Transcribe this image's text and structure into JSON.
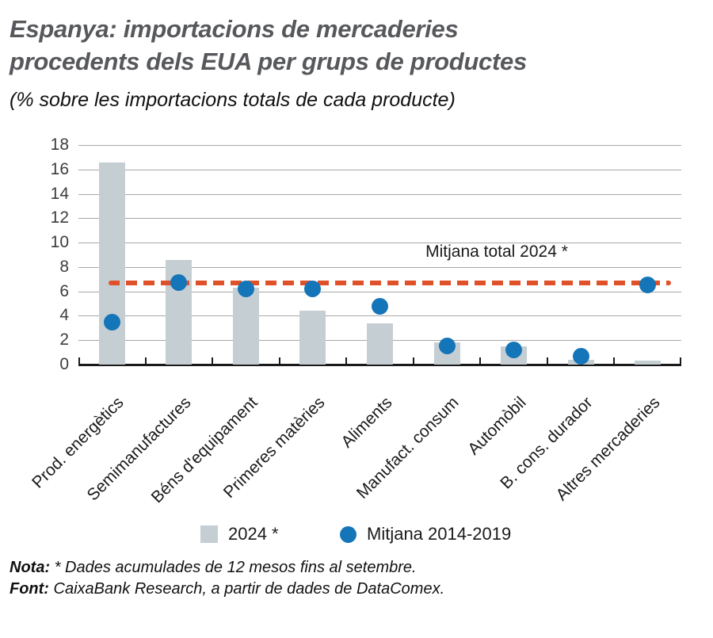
{
  "header": {
    "title_line1": "Espanya: importacions de mercaderies",
    "title_line2": "procedents dels EUA per grups de productes",
    "subtitle": "(% sobre les importacions totals de cada producte)"
  },
  "chart_data": {
    "type": "bar",
    "categories": [
      "Prod. energètics",
      "Semimanufactures",
      "Béns d'equipament",
      "Primeres matèries",
      "Aliments",
      "Manufact. consum",
      "Automòbil",
      "B. cons. durador",
      "Altres mercaderies"
    ],
    "series": [
      {
        "name": "2024 *",
        "marker": "bar",
        "color": "#c5ced3",
        "values": [
          16.6,
          8.6,
          6.3,
          4.4,
          3.4,
          1.8,
          1.5,
          0.4,
          0.3
        ]
      },
      {
        "name": "Mitjana 2014-2019",
        "marker": "circle",
        "color": "#1475b9",
        "values": [
          3.5,
          6.7,
          6.2,
          6.2,
          4.8,
          1.5,
          1.2,
          0.7,
          6.5
        ]
      }
    ],
    "reference_line": {
      "label": "Mitjana total 2024 *",
      "value": 6.7,
      "color": "#e0512a",
      "style": "dashed"
    },
    "title": "Espanya: importacions de mercaderies procedents dels EUA per grups de productes",
    "xlabel": "",
    "ylabel": "% sobre les importacions totals de cada producte",
    "ylim": [
      0,
      18
    ],
    "ytick_step": 2,
    "grid": true,
    "legend_position": "bottom"
  },
  "legend": {
    "items": [
      {
        "label": "2024 *",
        "marker": "square",
        "color": "#c5ced3"
      },
      {
        "label": "Mitjana 2014-2019",
        "marker": "circle",
        "color": "#1475b9"
      }
    ]
  },
  "footer": {
    "nota_label": "Nota:",
    "nota_text": " * Dades acumulades de 12 mesos fins al setembre.",
    "font_label": "Font:",
    "font_text": " CaixaBank Research, a partir de dades de DataComex."
  }
}
